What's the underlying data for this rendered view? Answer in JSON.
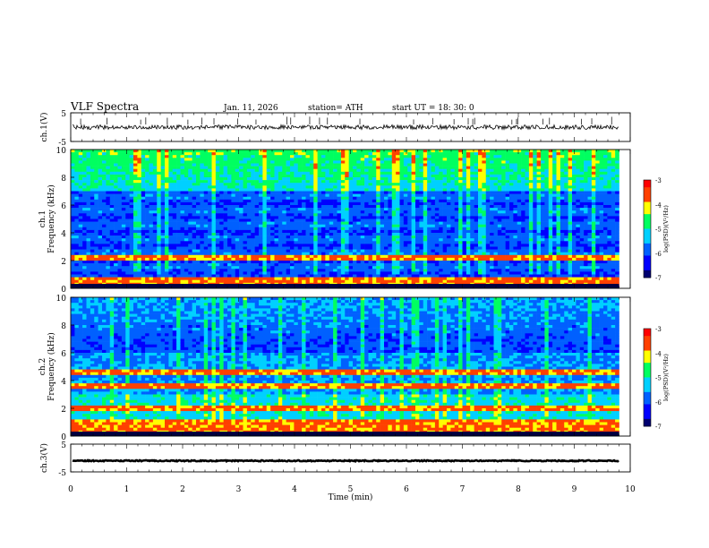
{
  "header": {
    "title": "VLF  Spectra",
    "date": "Jan.  11,  2026",
    "station": "station= ATH",
    "start": "start  UT  =    18: 30: 0"
  },
  "chart_data": [
    {
      "type": "line",
      "name": "ch1-time-series",
      "ylabel": "ch.1(V)",
      "ylim": [
        -5,
        5
      ],
      "yticks": [
        "5",
        "-5"
      ],
      "xlim": [
        0,
        10
      ],
      "approx_level": 0,
      "color": "#000000"
    },
    {
      "type": "heatmap",
      "name": "ch1-spectrogram",
      "ylabel": "ch.1\nFrequency (kHz)",
      "ylim": [
        0,
        10
      ],
      "yticks": [
        "0",
        "2",
        "4",
        "6",
        "8",
        "10"
      ],
      "xlim": [
        0,
        9.8
      ],
      "colorbar": {
        "label": "log(PSD)(V²/Hz)",
        "range": [
          -7,
          -3
        ],
        "ticks": [
          "-3",
          "-4",
          "-5",
          "-6",
          "-7"
        ]
      },
      "hot_bands_khz": [
        2.2,
        0.5
      ]
    },
    {
      "type": "heatmap",
      "name": "ch2-spectrogram",
      "ylabel": "ch.2\nFrequency (kHz)",
      "ylim": [
        0,
        10
      ],
      "yticks": [
        "0",
        "2",
        "4",
        "6",
        "8",
        "10"
      ],
      "xlim": [
        0,
        9.8
      ],
      "colorbar": {
        "label": "log(PSD)(V²/Hz)",
        "range": [
          -7,
          -3
        ],
        "ticks": [
          "-3",
          "-4",
          "-5",
          "-6",
          "-7"
        ]
      },
      "hot_bands_khz": [
        4.6,
        3.6,
        2.0,
        1.0,
        0.5
      ]
    },
    {
      "type": "line",
      "name": "ch3-time-series",
      "ylabel": "ch.3(V)",
      "ylim": [
        -5,
        5
      ],
      "yticks": [
        "5",
        "-5"
      ],
      "xlim": [
        0,
        10
      ],
      "approx_level": -1,
      "color": "#000000"
    }
  ],
  "xaxis": {
    "label": "Time  (min)",
    "ticks": [
      "0",
      "1",
      "2",
      "3",
      "4",
      "5",
      "6",
      "7",
      "8",
      "9",
      "10"
    ]
  },
  "colors": {
    "scale": [
      "#000070",
      "#0000ff",
      "#0060ff",
      "#00d0ff",
      "#00ff60",
      "#ffff00",
      "#ff4000",
      "#ff0000",
      "#ffffff"
    ]
  }
}
